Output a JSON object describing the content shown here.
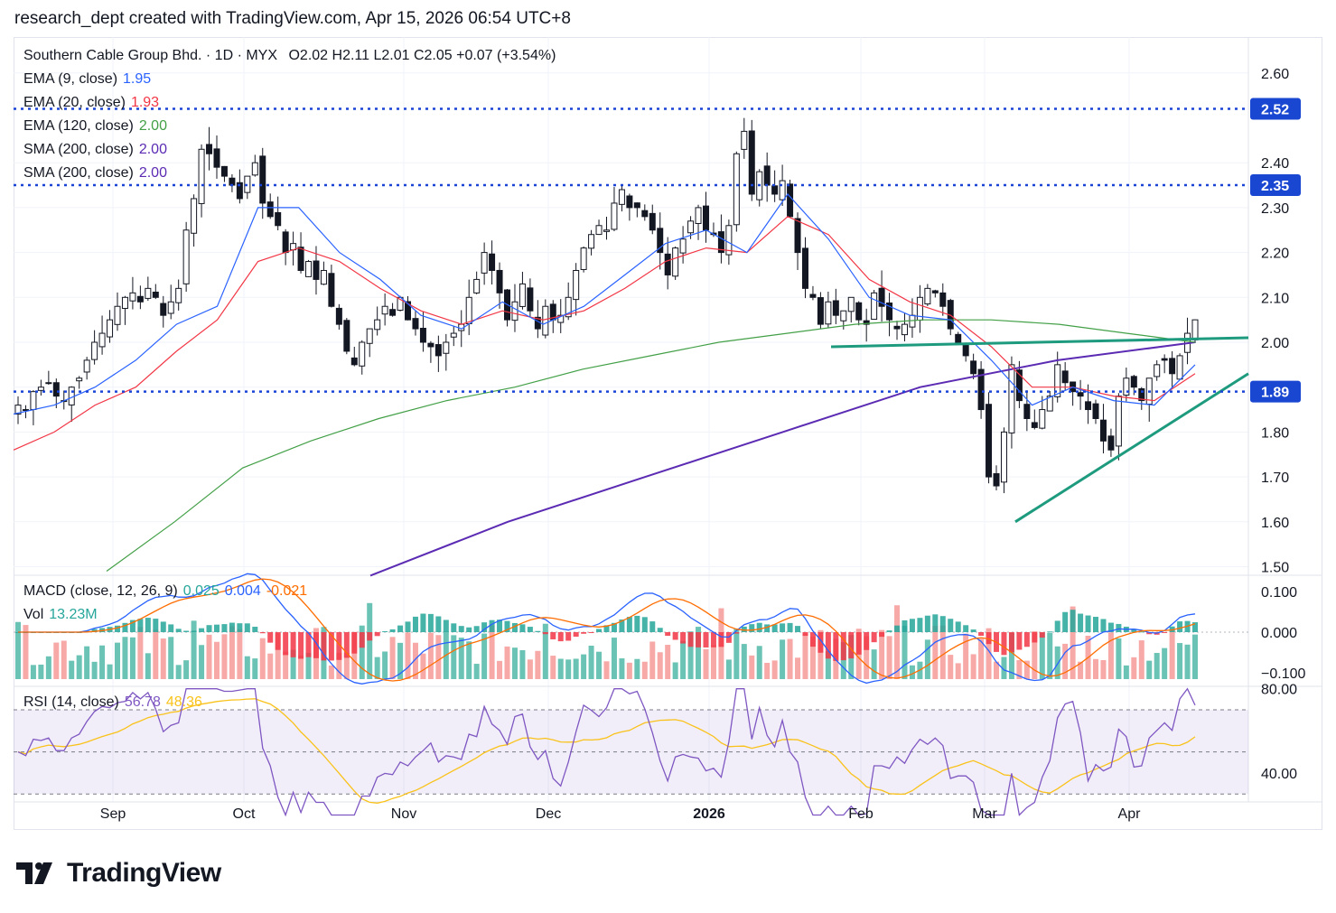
{
  "header": {
    "text": "research_dept created with TradingView.com, Apr 15, 2026 06:54 UTC+8"
  },
  "symbol": {
    "line": "Southern Cable Group Bhd. · 1D · MYX",
    "ohlc": "O2.02  H2.11  L2.01  C2.05  +0.07 (+3.54%)"
  },
  "indicators": [
    {
      "label": "EMA (9, close)",
      "value": "1.95",
      "color": "#2962ff"
    },
    {
      "label": "EMA (20, close)",
      "value": "1.93",
      "color": "#f23645"
    },
    {
      "label": "EMA (120, close)",
      "value": "2.00",
      "color": "#43a047"
    },
    {
      "label": "SMA (200, close)",
      "value": "2.00",
      "color": "#5b2bb3"
    },
    {
      "label": "SMA (200, close)",
      "value": "2.00",
      "color": "#5b2bb3"
    }
  ],
  "price_levels": [
    {
      "value": 2.52,
      "label": "2.52"
    },
    {
      "value": 2.35,
      "label": "2.35"
    },
    {
      "value": 1.89,
      "label": "1.89"
    }
  ],
  "macd": {
    "label": "MACD (close, 12, 26, 9)",
    "hist": "0.025",
    "macd": "0.004",
    "signal": "-0.021",
    "ticks": [
      "0.100",
      "0.000",
      "−0.100"
    ]
  },
  "vol": {
    "label": "Vol",
    "value": "13.23M"
  },
  "rsi": {
    "label": "RSI (14, close)",
    "value": "56.78",
    "ma": "48.36",
    "ticks": [
      "80.00",
      "40.00"
    ]
  },
  "x_labels": [
    "Sep",
    "Oct",
    "Nov",
    "Dec",
    "2026",
    "Feb",
    "Mar",
    "Apr"
  ],
  "logo": {
    "text": "TradingView"
  },
  "chart_data": {
    "type": "candlestick",
    "title": "Southern Cable Group Bhd. · 1D · MYX",
    "y_ticks": [
      1.5,
      1.6,
      1.7,
      1.8,
      1.9,
      2.0,
      2.1,
      2.2,
      2.3,
      2.4,
      2.6
    ],
    "ylim": [
      1.48,
      2.7
    ],
    "close_series": [
      1.86,
      1.85,
      1.89,
      1.9,
      1.91,
      1.88,
      1.87,
      1.9,
      1.92,
      1.96,
      2.0,
      2.02,
      2.05,
      2.08,
      2.1,
      2.11,
      2.09,
      2.12,
      2.1,
      2.06,
      2.09,
      2.12,
      2.25,
      2.32,
      2.43,
      2.42,
      2.39,
      2.37,
      2.35,
      2.32,
      2.37,
      2.4,
      2.31,
      2.28,
      2.26,
      2.2,
      2.22,
      2.16,
      2.18,
      2.14,
      2.16,
      2.08,
      2.04,
      1.98,
      1.95,
      2.0,
      2.03,
      2.05,
      2.08,
      2.06,
      2.1,
      2.05,
      2.03,
      2.0,
      1.99,
      1.97,
      2.0,
      2.02,
      2.04,
      2.1,
      2.14,
      2.2,
      2.16,
      2.11,
      2.05,
      2.09,
      2.13,
      2.07,
      2.03,
      2.08,
      2.05,
      2.06,
      2.1,
      2.16,
      2.21,
      2.24,
      2.26,
      2.25,
      2.31,
      2.34,
      2.3,
      2.3,
      2.28,
      2.25,
      2.2,
      2.15,
      2.21,
      2.23,
      2.27,
      2.3,
      2.25,
      2.24,
      2.2,
      2.26,
      2.42,
      2.47,
      2.33,
      2.38,
      2.35,
      2.33,
      2.36,
      2.28,
      2.2,
      2.12,
      2.1,
      2.04,
      2.09,
      2.06,
      2.07,
      2.1,
      2.05,
      2.04,
      2.11,
      2.08,
      2.05,
      2.03,
      2.04,
      2.06,
      2.1,
      2.12,
      2.11,
      2.08,
      2.03,
      2.0,
      1.97,
      1.93,
      1.85,
      1.7,
      1.68,
      1.8,
      1.95,
      1.87,
      1.83,
      1.81,
      1.85,
      1.88,
      1.95,
      1.91,
      1.89,
      1.88,
      1.85,
      1.83,
      1.78,
      1.76,
      1.88,
      1.92,
      1.9,
      1.87,
      1.92,
      1.95,
      1.96,
      1.93,
      1.97,
      2.02,
      2.05
    ],
    "ema9": [
      1.84,
      1.86,
      1.9,
      1.96,
      2.04,
      2.08,
      2.3,
      2.3,
      2.2,
      2.14,
      2.06,
      2.03,
      2.09,
      2.04,
      2.08,
      2.15,
      2.22,
      2.25,
      2.2,
      2.33,
      2.23,
      2.1,
      2.06,
      2.05,
      1.96,
      1.86,
      1.9,
      1.87,
      1.86,
      1.95
    ],
    "ema20": [
      1.76,
      1.8,
      1.86,
      1.9,
      1.98,
      2.05,
      2.18,
      2.21,
      2.18,
      2.12,
      2.07,
      2.04,
      2.07,
      2.05,
      2.07,
      2.12,
      2.18,
      2.21,
      2.2,
      2.28,
      2.24,
      2.14,
      2.09,
      2.06,
      1.99,
      1.9,
      1.9,
      1.88,
      1.87,
      1.93
    ],
    "ema120": [
      1.49,
      1.6,
      1.72,
      1.78,
      1.83,
      1.87,
      1.9,
      1.94,
      1.97,
      2.0,
      2.02,
      2.04,
      2.05,
      2.05,
      2.04,
      2.02,
      2.0
    ],
    "sma200": [
      1.48,
      1.6,
      1.7,
      1.8,
      1.9,
      1.96,
      2.0
    ],
    "support_line": {
      "from": [
        1.6,
        "Mar-10"
      ],
      "to": [
        1.93,
        "Apr-20"
      ]
    },
    "neckline": {
      "from": [
        1.99,
        "Jan-26"
      ],
      "to": [
        2.01,
        "Apr-20"
      ]
    }
  }
}
